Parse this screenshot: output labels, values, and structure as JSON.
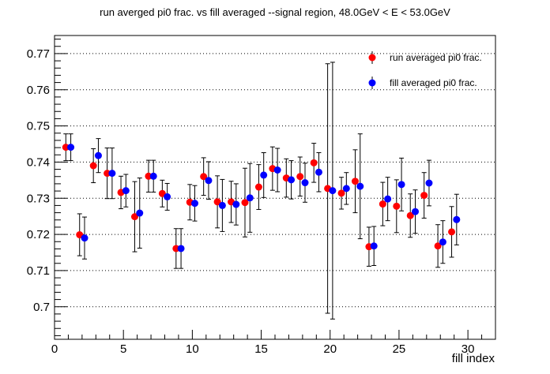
{
  "chart_data": {
    "type": "scatter",
    "title": "run averged pi0 frac. vs fill averaged --signal region, 48.0GeV < E < 53.0GeV",
    "xlabel": "fill index",
    "ylabel": "",
    "xlim": [
      0,
      32
    ],
    "ylim": [
      0.691,
      0.775
    ],
    "x_ticks": [
      0,
      5,
      10,
      15,
      20,
      25,
      30
    ],
    "y_ticks": [
      0.7,
      0.71,
      0.72,
      0.73,
      0.74,
      0.75,
      0.76,
      0.77
    ],
    "y_tick_labels": [
      "0.7",
      "0.71",
      "0.72",
      "0.73",
      "0.74",
      "0.75",
      "0.76",
      "0.77"
    ],
    "y_grid": true,
    "legend_position": "top-right",
    "series": [
      {
        "name": "run averaged pi0 frac.",
        "color": "#ff0000",
        "x": [
          1,
          2,
          3,
          4,
          5,
          6,
          7,
          8,
          9,
          10,
          11,
          12,
          13,
          14,
          15,
          16,
          17,
          18,
          19,
          20,
          21,
          22,
          23,
          24,
          25,
          26,
          27,
          28,
          29
        ],
        "y": [
          0.7441,
          0.7199,
          0.739,
          0.7369,
          0.7316,
          0.7249,
          0.7361,
          0.7313,
          0.7161,
          0.7289,
          0.736,
          0.729,
          0.729,
          0.7288,
          0.7331,
          0.7382,
          0.7356,
          0.736,
          0.7398,
          0.7327,
          0.7314,
          0.7347,
          0.7166,
          0.7284,
          0.7278,
          0.7252,
          0.7308,
          0.7168,
          0.7207
        ],
        "err": [
          0.0037,
          0.0058,
          0.0047,
          0.007,
          0.0045,
          0.0097,
          0.0044,
          0.0037,
          0.0055,
          0.0049,
          0.0052,
          0.0072,
          0.0057,
          0.0095,
          0.0062,
          0.006,
          0.0053,
          0.0054,
          0.0054,
          0.0345,
          0.0044,
          0.0087,
          0.0054,
          0.006,
          0.0073,
          0.006,
          0.0063,
          0.0059,
          0.007
        ]
      },
      {
        "name": "fill averaged pi0 frac.",
        "color": "#0000ff",
        "x": [
          1,
          2,
          3,
          4,
          5,
          6,
          7,
          8,
          9,
          10,
          11,
          12,
          13,
          14,
          15,
          16,
          17,
          18,
          19,
          20,
          21,
          22,
          23,
          24,
          25,
          26,
          27,
          28,
          29
        ],
        "y": [
          0.7441,
          0.719,
          0.7418,
          0.7369,
          0.7321,
          0.7259,
          0.7361,
          0.7304,
          0.7161,
          0.7286,
          0.7349,
          0.728,
          0.7283,
          0.7301,
          0.7364,
          0.7378,
          0.7351,
          0.7343,
          0.7372,
          0.7321,
          0.7327,
          0.7333,
          0.7168,
          0.7298,
          0.7338,
          0.7263,
          0.7342,
          0.7179,
          0.7241
        ],
        "err": [
          0.0037,
          0.0058,
          0.0047,
          0.007,
          0.0045,
          0.0097,
          0.0044,
          0.0037,
          0.0055,
          0.0049,
          0.0052,
          0.0072,
          0.0057,
          0.0095,
          0.0062,
          0.006,
          0.0053,
          0.0054,
          0.0054,
          0.0355,
          0.0044,
          0.0145,
          0.0054,
          0.006,
          0.0073,
          0.006,
          0.0063,
          0.0059,
          0.007
        ]
      }
    ]
  }
}
